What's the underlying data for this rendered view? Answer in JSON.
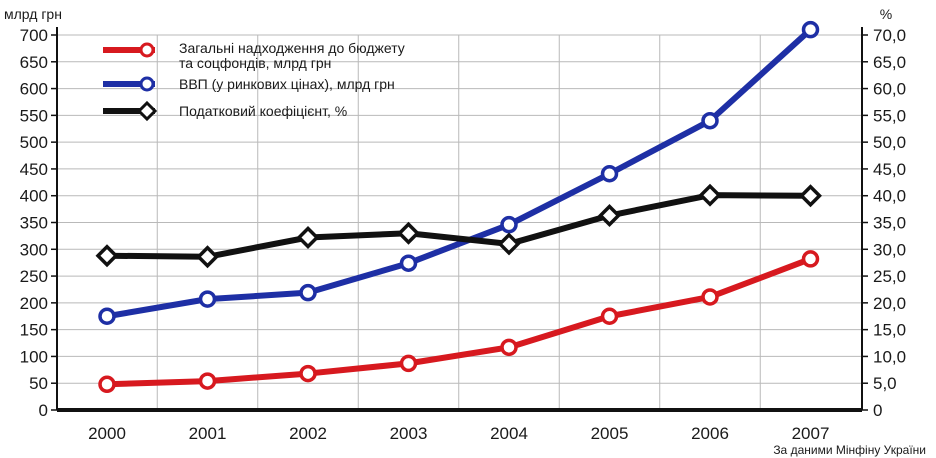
{
  "chart_data": {
    "type": "line",
    "left_axis_unit": "млрд грн",
    "right_axis_unit": "%",
    "categories": [
      "2000",
      "2001",
      "2002",
      "2003",
      "2004",
      "2005",
      "2006",
      "2007"
    ],
    "left_ticks": [
      "0",
      "50",
      "100",
      "150",
      "200",
      "250",
      "300",
      "350",
      "400",
      "450",
      "500",
      "550",
      "600",
      "650",
      "700"
    ],
    "right_ticks": [
      "0",
      "5,0",
      "10,0",
      "15,0",
      "20,0",
      "25,0",
      "30,0",
      "35,0",
      "40,0",
      "45,0",
      "50,0",
      "55,0",
      "60,0",
      "65,0",
      "70,0"
    ],
    "ylim_left": [
      0,
      700
    ],
    "ylim_right": [
      0,
      70
    ],
    "grid": true,
    "legend_position": "top-left",
    "series": [
      {
        "name_lines": [
          "Загальні надходження до бюджету",
          "та соцфондів, млрд грн"
        ],
        "axis": "left",
        "marker": "circle",
        "color": "#d7191f",
        "values": [
          48,
          54,
          68,
          87,
          117,
          175,
          211,
          282
        ]
      },
      {
        "name_lines": [
          "ВВП (у ринкових цінах), млрд грн"
        ],
        "axis": "left",
        "marker": "circle",
        "color": "#1e2fa5",
        "values": [
          175,
          207,
          219,
          274,
          346,
          441,
          540,
          710
        ]
      },
      {
        "name_lines": [
          "Податковий коефіцієнт, %"
        ],
        "axis": "right",
        "marker": "diamond",
        "color": "#111111",
        "values": [
          28.8,
          28.6,
          32.2,
          33.0,
          31.0,
          36.3,
          40.1,
          40.0
        ]
      }
    ],
    "source": "За даними Мінфіну України"
  }
}
